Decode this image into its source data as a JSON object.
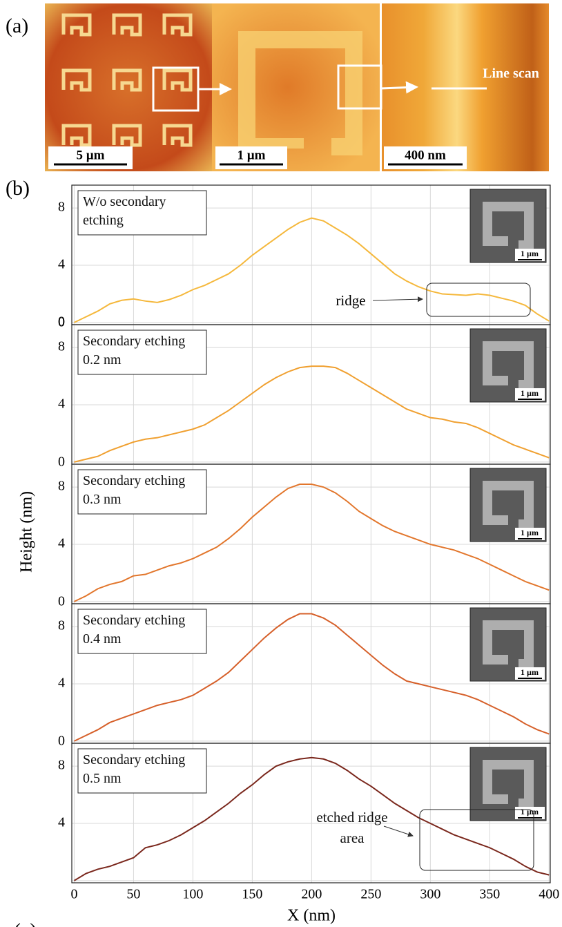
{
  "panel_a": {
    "label": "(a)",
    "scale_bars": [
      "5 µm",
      "1 µm",
      "400 nm"
    ],
    "line_scan": "Line scan"
  },
  "panel_b_label": "(b)",
  "panel_c_label": "(c)",
  "y_label": "Height (nm)",
  "x_label": "X (nm)",
  "chart_data": [
    {
      "type": "line",
      "series": [
        {
          "name": "W/o secondary etching",
          "color": "#f5b83c",
          "values": [
            0,
            0.4,
            0.8,
            1.3,
            1.55,
            1.65,
            1.5,
            1.4,
            1.6,
            1.9,
            2.3,
            2.6,
            3.0,
            3.4,
            4.0,
            4.7,
            5.3,
            5.9,
            6.5,
            7.0,
            7.3,
            7.1,
            6.6,
            6.1,
            5.5,
            4.8,
            4.1,
            3.4,
            2.9,
            2.5,
            2.2,
            2.0,
            1.95,
            1.9,
            2.0,
            1.9,
            1.7,
            1.5,
            1.2,
            0.6,
            0.1
          ]
        }
      ],
      "x": [
        0,
        10,
        20,
        30,
        40,
        50,
        60,
        70,
        80,
        90,
        100,
        110,
        120,
        130,
        140,
        150,
        160,
        170,
        180,
        190,
        200,
        210,
        220,
        230,
        240,
        250,
        260,
        270,
        280,
        290,
        300,
        310,
        320,
        330,
        340,
        350,
        360,
        370,
        380,
        390,
        400
      ],
      "ylim": [
        -0.15,
        9.6
      ],
      "yticks": [
        0,
        4,
        8
      ],
      "inset_scale": "1 µm",
      "annotations": [
        "ridge"
      ]
    },
    {
      "type": "line",
      "series": [
        {
          "name": "Secondary etching 0.2 nm",
          "color": "#f0a030",
          "values": [
            0,
            0.2,
            0.4,
            0.8,
            1.1,
            1.4,
            1.6,
            1.7,
            1.9,
            2.1,
            2.3,
            2.6,
            3.1,
            3.6,
            4.2,
            4.8,
            5.4,
            5.9,
            6.3,
            6.6,
            6.7,
            6.7,
            6.6,
            6.2,
            5.7,
            5.2,
            4.7,
            4.2,
            3.7,
            3.4,
            3.1,
            3.0,
            2.8,
            2.7,
            2.4,
            2.0,
            1.6,
            1.2,
            0.9,
            0.6,
            0.3
          ]
        }
      ],
      "x": [
        0,
        10,
        20,
        30,
        40,
        50,
        60,
        70,
        80,
        90,
        100,
        110,
        120,
        130,
        140,
        150,
        160,
        170,
        180,
        190,
        200,
        210,
        220,
        230,
        240,
        250,
        260,
        270,
        280,
        290,
        300,
        310,
        320,
        330,
        340,
        350,
        360,
        370,
        380,
        390,
        400
      ],
      "ylim": [
        -0.15,
        9.6
      ],
      "yticks": [
        0,
        4,
        8
      ],
      "inset_scale": "1 µm"
    },
    {
      "type": "line",
      "series": [
        {
          "name": "Secondary etching 0.3 nm",
          "color": "#e2762c",
          "values": [
            0,
            0.4,
            0.9,
            1.2,
            1.4,
            1.8,
            1.9,
            2.2,
            2.5,
            2.7,
            3.0,
            3.4,
            3.8,
            4.4,
            5.1,
            5.9,
            6.6,
            7.3,
            7.9,
            8.2,
            8.2,
            8.0,
            7.6,
            7.0,
            6.3,
            5.8,
            5.3,
            4.9,
            4.6,
            4.3,
            4.0,
            3.8,
            3.6,
            3.3,
            3.0,
            2.6,
            2.2,
            1.8,
            1.4,
            1.1,
            0.8
          ]
        }
      ],
      "x": [
        0,
        10,
        20,
        30,
        40,
        50,
        60,
        70,
        80,
        90,
        100,
        110,
        120,
        130,
        140,
        150,
        160,
        170,
        180,
        190,
        200,
        210,
        220,
        230,
        240,
        250,
        260,
        270,
        280,
        290,
        300,
        310,
        320,
        330,
        340,
        350,
        360,
        370,
        380,
        390,
        400
      ],
      "ylim": [
        -0.15,
        9.6
      ],
      "yticks": [
        0,
        4,
        8
      ],
      "inset_scale": "1 µm"
    },
    {
      "type": "line",
      "series": [
        {
          "name": "Secondary etching 0.4 nm",
          "color": "#d6602a",
          "values": [
            0,
            0.4,
            0.8,
            1.3,
            1.6,
            1.9,
            2.2,
            2.5,
            2.7,
            2.9,
            3.2,
            3.7,
            4.2,
            4.8,
            5.6,
            6.4,
            7.2,
            7.9,
            8.5,
            8.9,
            8.9,
            8.6,
            8.1,
            7.4,
            6.7,
            6.0,
            5.3,
            4.7,
            4.2,
            4.0,
            3.8,
            3.6,
            3.4,
            3.2,
            2.9,
            2.5,
            2.1,
            1.7,
            1.2,
            0.8,
            0.5
          ]
        }
      ],
      "x": [
        0,
        10,
        20,
        30,
        40,
        50,
        60,
        70,
        80,
        90,
        100,
        110,
        120,
        130,
        140,
        150,
        160,
        170,
        180,
        190,
        200,
        210,
        220,
        230,
        240,
        250,
        260,
        270,
        280,
        290,
        300,
        310,
        320,
        330,
        340,
        350,
        360,
        370,
        380,
        390,
        400
      ],
      "ylim": [
        -0.15,
        9.6
      ],
      "yticks": [
        0,
        4,
        8
      ],
      "inset_scale": "1 µm"
    },
    {
      "type": "line",
      "series": [
        {
          "name": "Secondary etching 0.5 nm",
          "color": "#7a271c",
          "values": [
            0,
            0.5,
            0.8,
            1.0,
            1.3,
            1.6,
            2.3,
            2.5,
            2.8,
            3.2,
            3.7,
            4.2,
            4.8,
            5.4,
            6.1,
            6.7,
            7.4,
            8.0,
            8.3,
            8.5,
            8.6,
            8.5,
            8.2,
            7.7,
            7.1,
            6.6,
            6.0,
            5.4,
            4.9,
            4.4,
            4.0,
            3.6,
            3.2,
            2.9,
            2.6,
            2.3,
            1.9,
            1.5,
            1.0,
            0.6,
            0.4
          ]
        }
      ],
      "x": [
        0,
        10,
        20,
        30,
        40,
        50,
        60,
        70,
        80,
        90,
        100,
        110,
        120,
        130,
        140,
        150,
        160,
        170,
        180,
        190,
        200,
        210,
        220,
        230,
        240,
        250,
        260,
        270,
        280,
        290,
        300,
        310,
        320,
        330,
        340,
        350,
        360,
        370,
        380,
        390,
        400
      ],
      "xlim": [
        -2,
        401
      ],
      "xticks": [
        0,
        50,
        100,
        150,
        200,
        250,
        300,
        350,
        400
      ],
      "ylim": [
        -0.15,
        9.6
      ],
      "yticks": [
        0,
        4,
        8
      ],
      "inset_scale": "1 µm",
      "annotations": [
        "etched ridge area"
      ]
    }
  ]
}
